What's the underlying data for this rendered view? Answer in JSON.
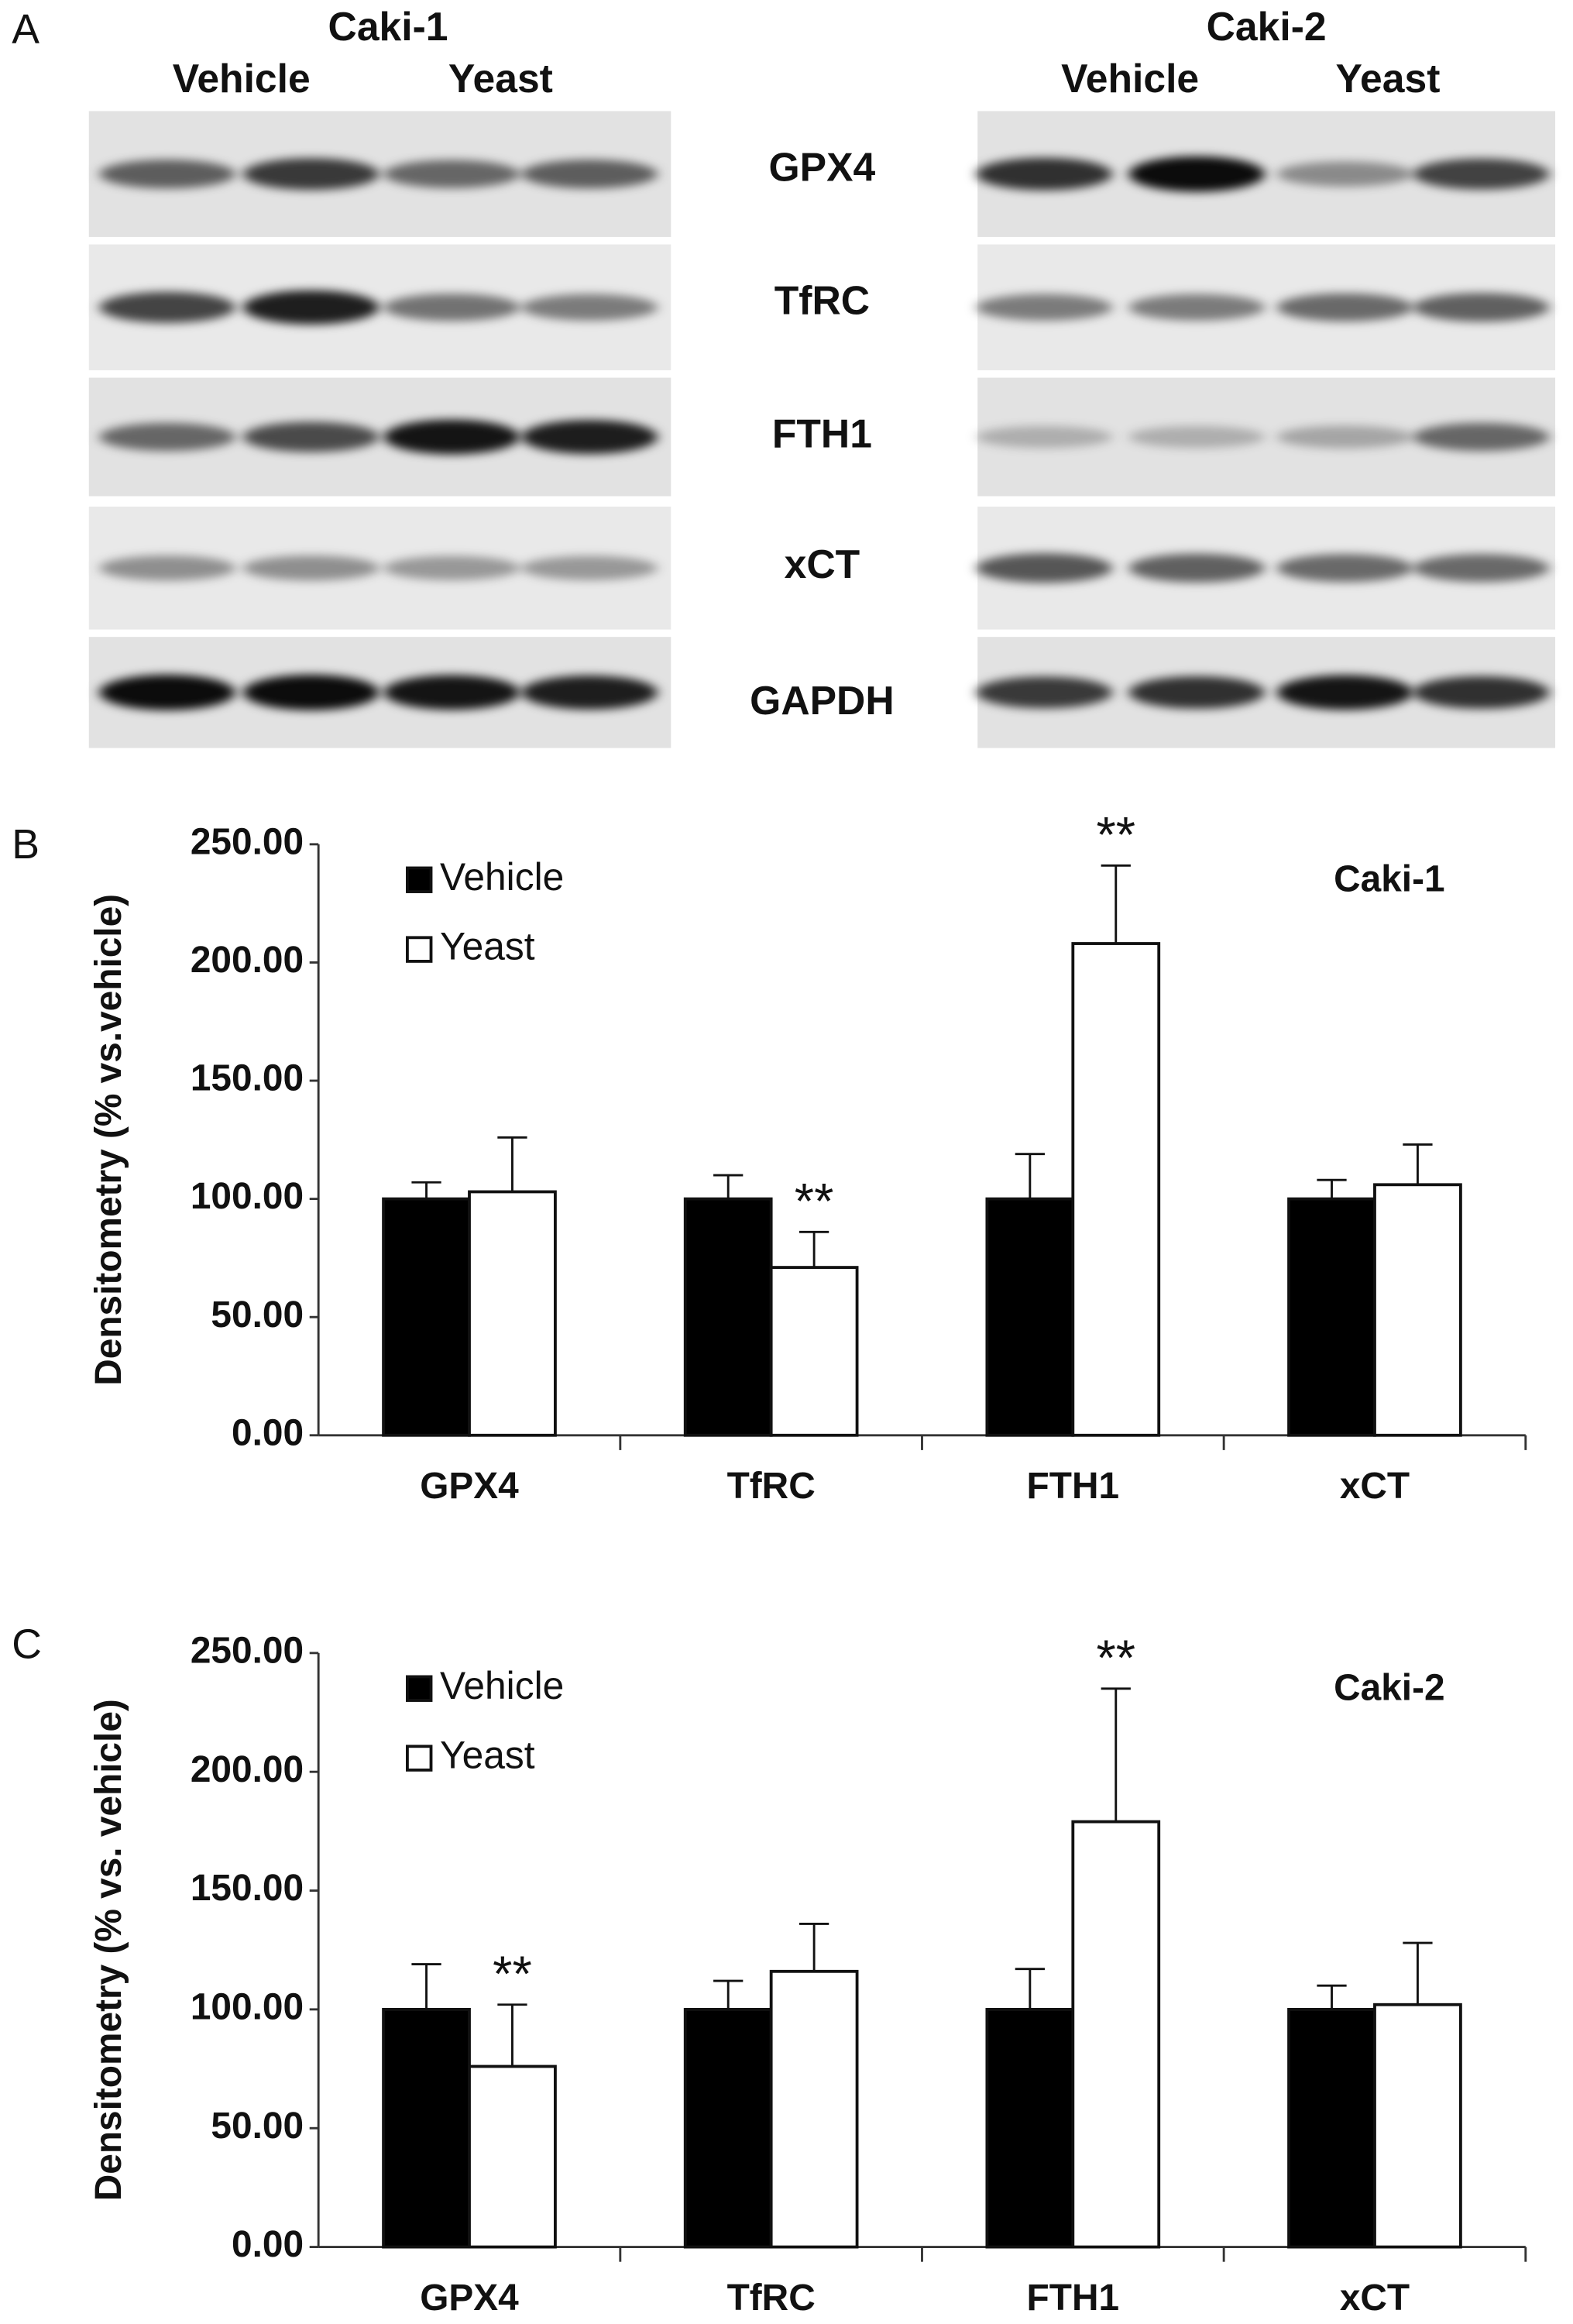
{
  "panel_labels": [
    "A",
    "B",
    "C"
  ],
  "blot": {
    "cell_lines": [
      {
        "name": "Caki-1",
        "groups": [
          "Vehicle",
          "Yeast"
        ]
      },
      {
        "name": "Caki-2",
        "groups": [
          "Vehicle",
          "Yeast"
        ]
      }
    ],
    "proteins": [
      "GPX4",
      "TfRC",
      "FTH1",
      "xCT",
      "GAPDH"
    ]
  },
  "chart_data": [
    {
      "type": "bar",
      "title": "Caki-1",
      "y_label": "Densitometry (% vs.vehicle)",
      "categories": [
        "GPX4",
        "TfRC",
        "FTH1",
        "xCT"
      ],
      "series": [
        {
          "name": "Vehicle",
          "color": "#000000",
          "values": [
            100,
            100,
            100,
            100
          ],
          "errors": [
            7,
            10,
            19,
            8
          ],
          "annotations": [
            null,
            null,
            null,
            null
          ]
        },
        {
          "name": "Yeast",
          "color": "#ffffff",
          "values": [
            103,
            71,
            208,
            106
          ],
          "errors": [
            23,
            15,
            33,
            17
          ],
          "annotations": [
            null,
            "**",
            "**",
            null
          ]
        }
      ],
      "ylim": [
        0,
        250
      ],
      "yticks": [
        {
          "value": 0,
          "label": "0.00"
        },
        {
          "value": 50,
          "label": "50.00"
        },
        {
          "value": 100,
          "label": "100.00"
        },
        {
          "value": 150,
          "label": "150.00"
        },
        {
          "value": 200,
          "label": "200.00"
        },
        {
          "value": 250,
          "label": "250.00"
        }
      ],
      "legend": "top-left",
      "grid": false
    },
    {
      "type": "bar",
      "title": "Caki-2",
      "y_label": "Densitometry (% vs. vehicle)",
      "categories": [
        "GPX4",
        "TfRC",
        "FTH1",
        "xCT"
      ],
      "series": [
        {
          "name": "Vehicle",
          "color": "#000000",
          "values": [
            100,
            100,
            100,
            100
          ],
          "errors": [
            19,
            12,
            17,
            10
          ],
          "annotations": [
            null,
            null,
            null,
            null
          ]
        },
        {
          "name": "Yeast",
          "color": "#ffffff",
          "values": [
            76,
            116,
            179,
            102
          ],
          "errors": [
            26,
            20,
            56,
            26
          ],
          "annotations": [
            "**",
            null,
            "**",
            null
          ]
        }
      ],
      "ylim": [
        0,
        250
      ],
      "yticks": [
        {
          "value": 0,
          "label": "0.00"
        },
        {
          "value": 50,
          "label": "50.00"
        },
        {
          "value": 100,
          "label": "100.00"
        },
        {
          "value": 150,
          "label": "150.00"
        },
        {
          "value": 200,
          "label": "200.00"
        },
        {
          "value": 250,
          "label": "250.00"
        }
      ],
      "legend": "top-left",
      "grid": false
    }
  ]
}
